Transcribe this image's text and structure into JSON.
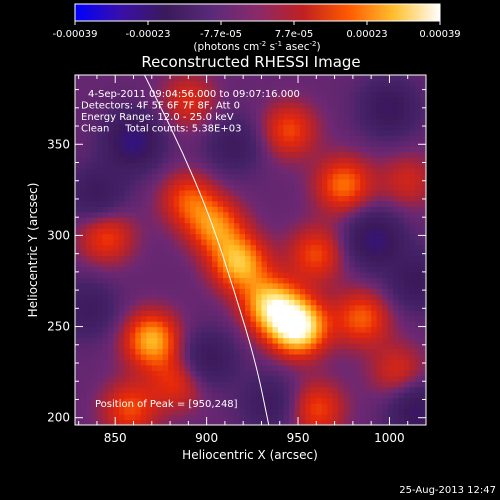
{
  "colorbar": {
    "ticks": [
      "-0.00039",
      "-0.00023",
      "-7.7e-05",
      "7.7e-05",
      "0.00023",
      "0.00039"
    ],
    "unit_main": "(photons cm",
    "unit_exp1": "-2",
    "unit_mid": " s",
    "unit_exp2": "-1",
    "unit_mid2": " asec",
    "unit_exp3": "-2",
    "unit_end": ")",
    "colors": [
      "#0000ff",
      "#3a0fa8",
      "#3b1a5a",
      "#5a2a7a",
      "#8a2a6a",
      "#c02020",
      "#ff5a00",
      "#ffc030",
      "#ffffff"
    ]
  },
  "chart_data": {
    "type": "heatmap",
    "title": "Reconstructed RHESSI Image",
    "xlabel": "Heliocentric X (arcsec)",
    "ylabel": "Heliocentric Y (arcsec)",
    "xlim": [
      828,
      1020
    ],
    "ylim": [
      196,
      388
    ],
    "xticks": [
      850,
      900,
      950,
      1000
    ],
    "yticks": [
      200,
      250,
      300,
      350
    ],
    "annotations": [
      "4-Sep-2011 09:04:56.000 to 09:07:16.000",
      "Detectors: 4F 5F 6F 7F 8F, Att 0",
      "Energy Range: 12.0 - 25.0 keV",
      "Clean     Total counts: 5.38E+03"
    ],
    "peak_label": "Position of Peak = [950,248]",
    "peak": [
      950,
      248
    ],
    "limb_curve": [
      [
        866,
        388
      ],
      [
        885,
        350
      ],
      [
        902,
        310
      ],
      [
        915,
        270
      ],
      [
        927,
        230
      ],
      [
        934,
        196
      ]
    ],
    "sources": [
      {
        "x": 950,
        "y": 250,
        "amp": 1.0
      },
      {
        "x": 935,
        "y": 262,
        "amp": 0.75
      },
      {
        "x": 918,
        "y": 285,
        "amp": 0.7
      },
      {
        "x": 905,
        "y": 305,
        "amp": 0.55
      },
      {
        "x": 890,
        "y": 320,
        "amp": 0.45
      },
      {
        "x": 870,
        "y": 243,
        "amp": 0.7
      },
      {
        "x": 845,
        "y": 300,
        "amp": 0.45
      },
      {
        "x": 960,
        "y": 290,
        "amp": 0.45
      },
      {
        "x": 975,
        "y": 328,
        "amp": 0.55
      },
      {
        "x": 945,
        "y": 358,
        "amp": 0.45
      },
      {
        "x": 890,
        "y": 374,
        "amp": 0.35
      },
      {
        "x": 885,
        "y": 220,
        "amp": 0.4
      },
      {
        "x": 985,
        "y": 255,
        "amp": 0.5
      },
      {
        "x": 960,
        "y": 205,
        "amp": 0.45
      },
      {
        "x": 1005,
        "y": 225,
        "amp": 0.35
      },
      {
        "x": 1010,
        "y": 330,
        "amp": 0.3
      },
      {
        "x": 858,
        "y": 205,
        "amp": 0.45
      },
      {
        "x": 860,
        "y": 352,
        "amp": -0.6
      },
      {
        "x": 840,
        "y": 322,
        "amp": -0.4
      },
      {
        "x": 900,
        "y": 232,
        "amp": -0.45
      },
      {
        "x": 992,
        "y": 298,
        "amp": -0.55
      },
      {
        "x": 1015,
        "y": 275,
        "amp": -0.4
      },
      {
        "x": 1000,
        "y": 370,
        "amp": -0.45
      },
      {
        "x": 915,
        "y": 350,
        "amp": -0.35
      },
      {
        "x": 835,
        "y": 260,
        "amp": -0.35
      },
      {
        "x": 1015,
        "y": 205,
        "amp": -0.5
      },
      {
        "x": 935,
        "y": 208,
        "amp": -0.35
      }
    ]
  },
  "footer": {
    "timestamp": "25-Aug-2013 12:47"
  }
}
